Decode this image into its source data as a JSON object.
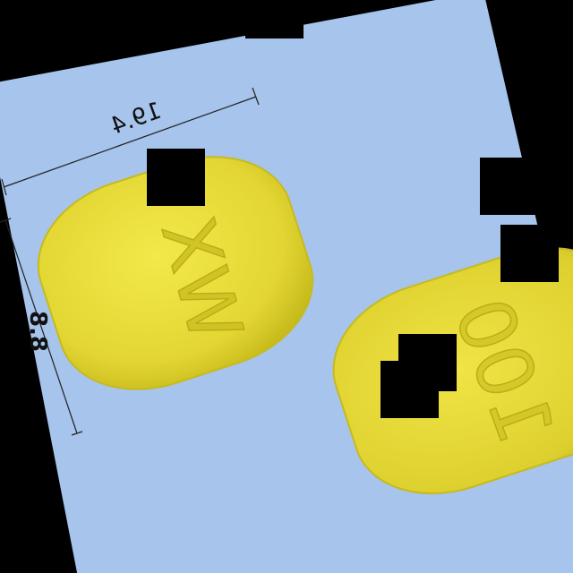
{
  "photo": {
    "background_color": "#a6c4ec",
    "tablet_color": "#e6dc38",
    "tablet_edge_color": "#c9bd1c",
    "dimension_width": "19.4",
    "dimension_height": "8.8",
    "tablet_left_imprint": "WX",
    "tablet_right_imprint": "100"
  }
}
